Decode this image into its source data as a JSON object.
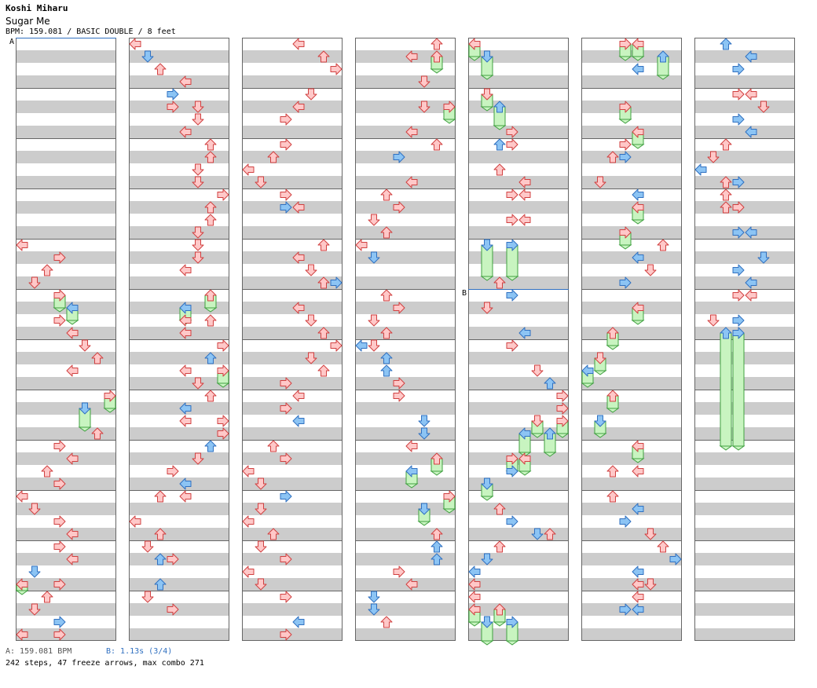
{
  "header": {
    "artist": "Koshi Miharu",
    "title": "Sugar Me",
    "info": "BPM: 159.081 / BASIC DOUBLE / 8 feet"
  },
  "footer": {
    "bpm_note": "A: 159.081 BPM",
    "stop_note": "B: 1.13s (3/4)",
    "summary": "242 steps, 47 freeze arrows, max combo 271"
  },
  "colors": {
    "band_gray": "#cccccc",
    "border": "#666666",
    "arrow_red_fill": "#ffc8c8",
    "arrow_red_stroke": "#d04040",
    "arrow_blue_fill": "#8cc4f4",
    "arrow_blue_stroke": "#3070c0",
    "freeze_fill": "#c8f4c0",
    "freeze_stroke": "#40a040",
    "marker_line": "#3070c0"
  },
  "chart_data": {
    "type": "step-chart",
    "columns": 7,
    "measures_per_column": 12,
    "lanes": 8,
    "markers": [
      {
        "label": "A",
        "column": 0,
        "beat": 0
      },
      {
        "label": "B",
        "column": 4,
        "beat": 20
      }
    ],
    "notes": [
      [
        0,
        16,
        0,
        "r"
      ],
      [
        0,
        17,
        3,
        "r"
      ],
      [
        0,
        18,
        2,
        "r"
      ],
      [
        0,
        19,
        1,
        "r"
      ],
      [
        0,
        20,
        3,
        "r",
        21
      ],
      [
        0,
        21,
        4,
        "b",
        22
      ],
      [
        0,
        22,
        3,
        "r"
      ],
      [
        0,
        23,
        4,
        "r"
      ],
      [
        0,
        24,
        5,
        "r"
      ],
      [
        0,
        25,
        6,
        "r"
      ],
      [
        0,
        26,
        4,
        "r"
      ],
      [
        0,
        28,
        7,
        "r",
        29
      ],
      [
        0,
        29,
        5,
        "b",
        30.5
      ],
      [
        0,
        31,
        6,
        "r"
      ],
      [
        0,
        32,
        3,
        "r"
      ],
      [
        0,
        33,
        4,
        "r"
      ],
      [
        0,
        34,
        2,
        "r"
      ],
      [
        0,
        35,
        3,
        "r"
      ],
      [
        0,
        36,
        0,
        "r"
      ],
      [
        0,
        37,
        1,
        "r"
      ],
      [
        0,
        38,
        3,
        "r"
      ],
      [
        0,
        39,
        4,
        "r"
      ],
      [
        0,
        40,
        3,
        "r"
      ],
      [
        0,
        41,
        4,
        "r"
      ],
      [
        0,
        42,
        1,
        "b"
      ],
      [
        0,
        43,
        3,
        "r"
      ],
      [
        0,
        43,
        0,
        "r",
        43.5
      ],
      [
        0,
        44,
        2,
        "r"
      ],
      [
        0,
        45,
        1,
        "r"
      ],
      [
        0,
        46,
        3,
        "b"
      ],
      [
        0,
        47,
        0,
        "r"
      ],
      [
        0,
        47,
        3,
        "r"
      ],
      [
        1,
        0,
        0,
        "r"
      ],
      [
        1,
        1,
        1,
        "b"
      ],
      [
        1,
        2,
        2,
        "r"
      ],
      [
        1,
        3,
        4,
        "r"
      ],
      [
        1,
        4,
        3,
        "b"
      ],
      [
        1,
        5,
        3,
        "r"
      ],
      [
        1,
        5,
        5,
        "r"
      ],
      [
        1,
        6,
        5,
        "r"
      ],
      [
        1,
        7,
        4,
        "r"
      ],
      [
        1,
        8,
        6,
        "r"
      ],
      [
        1,
        9,
        6,
        "r"
      ],
      [
        1,
        10,
        5,
        "r"
      ],
      [
        1,
        11,
        5,
        "r"
      ],
      [
        1,
        12,
        7,
        "r"
      ],
      [
        1,
        13,
        6,
        "r"
      ],
      [
        1,
        14,
        6,
        "r"
      ],
      [
        1,
        15,
        5,
        "r"
      ],
      [
        1,
        16,
        5,
        "r"
      ],
      [
        1,
        17,
        5,
        "r"
      ],
      [
        1,
        18,
        4,
        "r"
      ],
      [
        1,
        20,
        6,
        "r",
        21
      ],
      [
        1,
        21,
        4,
        "b",
        22
      ],
      [
        1,
        22,
        4,
        "r"
      ],
      [
        1,
        22,
        6,
        "r"
      ],
      [
        1,
        23,
        4,
        "r"
      ],
      [
        1,
        24,
        7,
        "r"
      ],
      [
        1,
        25,
        6,
        "b"
      ],
      [
        1,
        26,
        4,
        "r"
      ],
      [
        1,
        26,
        7,
        "r",
        27
      ],
      [
        1,
        27,
        5,
        "r"
      ],
      [
        1,
        28,
        6,
        "r"
      ],
      [
        1,
        29,
        4,
        "b"
      ],
      [
        1,
        30,
        4,
        "r"
      ],
      [
        1,
        30,
        7,
        "r"
      ],
      [
        1,
        31,
        7,
        "r"
      ],
      [
        1,
        32,
        6,
        "b"
      ],
      [
        1,
        33,
        5,
        "r"
      ],
      [
        1,
        34,
        3,
        "r"
      ],
      [
        1,
        35,
        4,
        "b"
      ],
      [
        1,
        36,
        2,
        "r"
      ],
      [
        1,
        36,
        4,
        "r"
      ],
      [
        1,
        38,
        0,
        "r"
      ],
      [
        1,
        39,
        2,
        "r"
      ],
      [
        1,
        40,
        1,
        "r"
      ],
      [
        1,
        41,
        2,
        "b"
      ],
      [
        1,
        41,
        3,
        "r"
      ],
      [
        1,
        43,
        2,
        "b"
      ],
      [
        1,
        44,
        1,
        "r"
      ],
      [
        1,
        45,
        3,
        "r"
      ],
      [
        2,
        0,
        4,
        "r"
      ],
      [
        2,
        1,
        6,
        "r"
      ],
      [
        2,
        2,
        7,
        "r"
      ],
      [
        2,
        4,
        5,
        "r"
      ],
      [
        2,
        5,
        4,
        "r"
      ],
      [
        2,
        6,
        3,
        "r"
      ],
      [
        2,
        8,
        3,
        "r"
      ],
      [
        2,
        9,
        2,
        "r"
      ],
      [
        2,
        10,
        0,
        "r"
      ],
      [
        2,
        11,
        1,
        "r"
      ],
      [
        2,
        12,
        3,
        "r"
      ],
      [
        2,
        13,
        4,
        "r"
      ],
      [
        2,
        13,
        3,
        "b"
      ],
      [
        2,
        16,
        6,
        "r"
      ],
      [
        2,
        17,
        4,
        "r"
      ],
      [
        2,
        18,
        5,
        "r"
      ],
      [
        2,
        19,
        6,
        "r"
      ],
      [
        2,
        19,
        7,
        "b"
      ],
      [
        2,
        21,
        4,
        "r"
      ],
      [
        2,
        22,
        5,
        "r"
      ],
      [
        2,
        23,
        6,
        "r"
      ],
      [
        2,
        24,
        7,
        "r"
      ],
      [
        2,
        25,
        5,
        "r"
      ],
      [
        2,
        26,
        6,
        "r"
      ],
      [
        2,
        27,
        3,
        "r"
      ],
      [
        2,
        28,
        4,
        "r"
      ],
      [
        2,
        29,
        3,
        "r"
      ],
      [
        2,
        30,
        4,
        "b"
      ],
      [
        2,
        32,
        2,
        "r"
      ],
      [
        2,
        33,
        3,
        "r"
      ],
      [
        2,
        34,
        0,
        "r"
      ],
      [
        2,
        35,
        1,
        "r"
      ],
      [
        2,
        36,
        3,
        "b"
      ],
      [
        2,
        37,
        1,
        "r"
      ],
      [
        2,
        38,
        0,
        "r"
      ],
      [
        2,
        39,
        2,
        "r"
      ],
      [
        2,
        40,
        1,
        "r"
      ],
      [
        2,
        41,
        3,
        "r"
      ],
      [
        2,
        42,
        0,
        "r"
      ],
      [
        2,
        43,
        1,
        "r"
      ],
      [
        2,
        44,
        3,
        "r"
      ],
      [
        2,
        47,
        3,
        "r"
      ],
      [
        2,
        46,
        4,
        "b"
      ],
      [
        3,
        0,
        6,
        "r"
      ],
      [
        3,
        1,
        4,
        "r"
      ],
      [
        3,
        1,
        6,
        "r",
        2
      ],
      [
        3,
        3,
        5,
        "r"
      ],
      [
        3,
        5,
        5,
        "r"
      ],
      [
        3,
        5,
        7,
        "r",
        6
      ],
      [
        3,
        7,
        4,
        "r"
      ],
      [
        3,
        8,
        6,
        "r"
      ],
      [
        3,
        9,
        3,
        "b"
      ],
      [
        3,
        11,
        4,
        "r"
      ],
      [
        3,
        12,
        2,
        "r"
      ],
      [
        3,
        13,
        3,
        "r"
      ],
      [
        3,
        14,
        1,
        "r"
      ],
      [
        3,
        15,
        2,
        "r"
      ],
      [
        3,
        16,
        0,
        "r"
      ],
      [
        3,
        17,
        1,
        "b"
      ],
      [
        3,
        20,
        2,
        "r"
      ],
      [
        3,
        21,
        3,
        "r"
      ],
      [
        3,
        22,
        1,
        "r"
      ],
      [
        3,
        23,
        2,
        "r"
      ],
      [
        3,
        24,
        0,
        "b"
      ],
      [
        3,
        24,
        1,
        "r"
      ],
      [
        3,
        25,
        2,
        "b"
      ],
      [
        3,
        26,
        2,
        "b"
      ],
      [
        3,
        27,
        3,
        "r"
      ],
      [
        3,
        28,
        3,
        "r"
      ],
      [
        3,
        30,
        5,
        "b"
      ],
      [
        3,
        31,
        5,
        "b"
      ],
      [
        3,
        32,
        4,
        "r"
      ],
      [
        3,
        33,
        6,
        "r",
        34
      ],
      [
        3,
        34,
        4,
        "b",
        35
      ],
      [
        3,
        36,
        7,
        "r",
        37
      ],
      [
        3,
        37,
        5,
        "b",
        38
      ],
      [
        3,
        39,
        6,
        "r"
      ],
      [
        3,
        40,
        6,
        "b"
      ],
      [
        3,
        41,
        6,
        "b"
      ],
      [
        3,
        42,
        3,
        "r"
      ],
      [
        3,
        43,
        4,
        "r"
      ],
      [
        3,
        44,
        1,
        "b"
      ],
      [
        3,
        45,
        1,
        "b"
      ],
      [
        3,
        46,
        2,
        "r"
      ],
      [
        4,
        0,
        0,
        "r",
        1
      ],
      [
        4,
        1,
        1,
        "b",
        2.5
      ],
      [
        4,
        4,
        1,
        "r",
        5
      ],
      [
        4,
        5,
        2,
        "b",
        6.5
      ],
      [
        4,
        7,
        3,
        "r"
      ],
      [
        4,
        8,
        3,
        "r"
      ],
      [
        4,
        8,
        2,
        "b"
      ],
      [
        4,
        10,
        2,
        "r"
      ],
      [
        4,
        11,
        4,
        "r"
      ],
      [
        4,
        12,
        3,
        "r"
      ],
      [
        4,
        12,
        4,
        "r"
      ],
      [
        4,
        14,
        3,
        "r"
      ],
      [
        4,
        14,
        4,
        "r"
      ],
      [
        4,
        16,
        1,
        "b",
        18.5
      ],
      [
        4,
        16,
        3,
        "b",
        18.5
      ],
      [
        4,
        19,
        2,
        "r"
      ],
      [
        4,
        20,
        3,
        "b"
      ],
      [
        4,
        21,
        1,
        "r"
      ],
      [
        4,
        23,
        4,
        "b"
      ],
      [
        4,
        24,
        3,
        "b"
      ],
      [
        4,
        24,
        3,
        "r"
      ],
      [
        4,
        26,
        5,
        "r"
      ],
      [
        4,
        27,
        6,
        "b"
      ],
      [
        4,
        28,
        7,
        "b"
      ],
      [
        4,
        28,
        7,
        "r"
      ],
      [
        4,
        29,
        7,
        "r"
      ],
      [
        4,
        30,
        5,
        "r",
        31
      ],
      [
        4,
        30,
        7,
        "r",
        31
      ],
      [
        4,
        31,
        4,
        "b",
        32.5
      ],
      [
        4,
        31,
        6,
        "b",
        32.5
      ],
      [
        4,
        33,
        3,
        "r",
        34
      ],
      [
        4,
        33,
        4,
        "r",
        34
      ],
      [
        4,
        34,
        3,
        "b"
      ],
      [
        4,
        35,
        1,
        "b",
        36
      ],
      [
        4,
        37,
        2,
        "r"
      ],
      [
        4,
        38,
        3,
        "b"
      ],
      [
        4,
        39,
        5,
        "b"
      ],
      [
        4,
        39,
        6,
        "r"
      ],
      [
        4,
        40,
        2,
        "r"
      ],
      [
        4,
        41,
        1,
        "b"
      ],
      [
        4,
        42,
        0,
        "b"
      ],
      [
        4,
        43,
        0,
        "r"
      ],
      [
        4,
        44,
        0,
        "r"
      ],
      [
        4,
        45,
        0,
        "r",
        46
      ],
      [
        4,
        45,
        2,
        "r",
        46
      ],
      [
        4,
        46,
        1,
        "b",
        47.5
      ],
      [
        4,
        46,
        3,
        "b",
        47.5
      ],
      [
        5,
        0,
        3,
        "r",
        1
      ],
      [
        5,
        0,
        4,
        "r",
        1
      ],
      [
        5,
        1,
        6,
        "b",
        2.5
      ],
      [
        5,
        2,
        4,
        "b"
      ],
      [
        5,
        5,
        3,
        "r",
        6
      ],
      [
        5,
        7,
        4,
        "r",
        8
      ],
      [
        5,
        8,
        3,
        "r"
      ],
      [
        5,
        9,
        2,
        "r"
      ],
      [
        5,
        9,
        3,
        "b"
      ],
      [
        5,
        11,
        1,
        "r"
      ],
      [
        5,
        12,
        4,
        "b"
      ],
      [
        5,
        13,
        4,
        "r",
        14
      ],
      [
        5,
        15,
        3,
        "r",
        16
      ],
      [
        5,
        16,
        6,
        "r"
      ],
      [
        5,
        17,
        4,
        "b"
      ],
      [
        5,
        18,
        5,
        "r"
      ],
      [
        5,
        19,
        3,
        "b"
      ],
      [
        5,
        21,
        4,
        "r",
        22
      ],
      [
        5,
        23,
        2,
        "r",
        24
      ],
      [
        5,
        25,
        1,
        "r",
        26
      ],
      [
        5,
        26,
        0,
        "b",
        27
      ],
      [
        5,
        28,
        2,
        "r",
        29
      ],
      [
        5,
        30,
        1,
        "b",
        31
      ],
      [
        5,
        32,
        4,
        "r",
        33
      ],
      [
        5,
        34,
        2,
        "r"
      ],
      [
        5,
        34,
        4,
        "r"
      ],
      [
        5,
        36,
        2,
        "r"
      ],
      [
        5,
        37,
        4,
        "b"
      ],
      [
        5,
        38,
        3,
        "b"
      ],
      [
        5,
        39,
        5,
        "r"
      ],
      [
        5,
        40,
        6,
        "r"
      ],
      [
        5,
        41,
        7,
        "b"
      ],
      [
        5,
        42,
        4,
        "b"
      ],
      [
        5,
        43,
        4,
        "r"
      ],
      [
        5,
        43,
        5,
        "r"
      ],
      [
        5,
        44,
        4,
        "r"
      ],
      [
        5,
        45,
        3,
        "b"
      ],
      [
        5,
        45,
        4,
        "b"
      ],
      [
        6,
        0,
        2,
        "b"
      ],
      [
        6,
        1,
        4,
        "b"
      ],
      [
        6,
        2,
        3,
        "b"
      ],
      [
        6,
        4,
        3,
        "r"
      ],
      [
        6,
        4,
        4,
        "r"
      ],
      [
        6,
        5,
        5,
        "r"
      ],
      [
        6,
        6,
        3,
        "b"
      ],
      [
        6,
        7,
        4,
        "b"
      ],
      [
        6,
        8,
        2,
        "r"
      ],
      [
        6,
        9,
        1,
        "r"
      ],
      [
        6,
        10,
        0,
        "b"
      ],
      [
        6,
        11,
        2,
        "r"
      ],
      [
        6,
        11,
        3,
        "b"
      ],
      [
        6,
        12,
        2,
        "r"
      ],
      [
        6,
        13,
        2,
        "r"
      ],
      [
        6,
        13,
        3,
        "r"
      ],
      [
        6,
        15,
        3,
        "b"
      ],
      [
        6,
        15,
        4,
        "b"
      ],
      [
        6,
        17,
        5,
        "b"
      ],
      [
        6,
        18,
        3,
        "b"
      ],
      [
        6,
        19,
        4,
        "b"
      ],
      [
        6,
        20,
        3,
        "r"
      ],
      [
        6,
        20,
        4,
        "r"
      ],
      [
        6,
        22,
        1,
        "r"
      ],
      [
        6,
        22,
        3,
        "b"
      ],
      [
        6,
        23,
        2,
        "b",
        32
      ],
      [
        6,
        23,
        3,
        "b",
        32
      ]
    ]
  }
}
